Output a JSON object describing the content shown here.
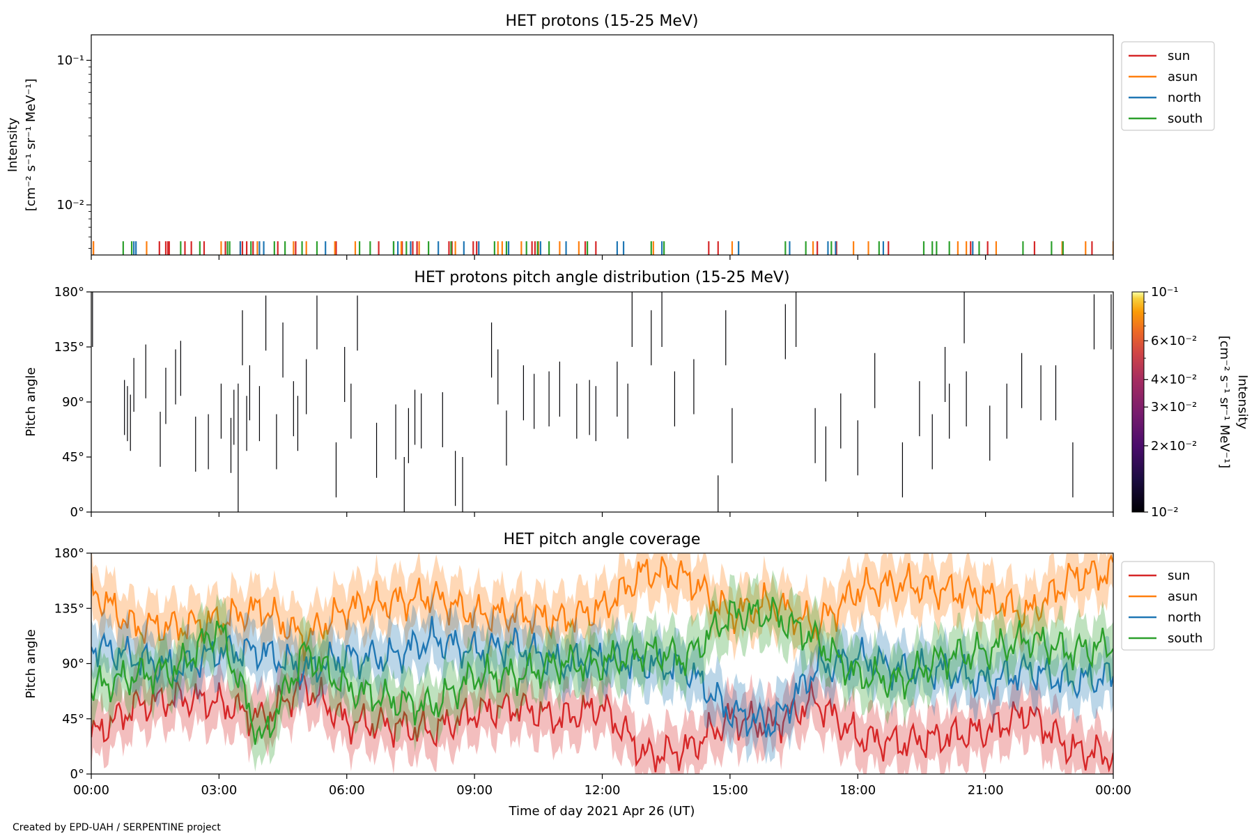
{
  "credit": "Created by EPD-UAH / SERPENTINE project",
  "colors": {
    "sun": "#d62728",
    "asun": "#ff7f0e",
    "north": "#1f77b4",
    "south": "#2ca02c"
  },
  "x_axis": {
    "label": "Time of day 2021 Apr 26 (UT)",
    "ticks": [
      "00:00",
      "03:00",
      "06:00",
      "09:00",
      "12:00",
      "15:00",
      "18:00",
      "21:00",
      "00:00"
    ],
    "range_hours": [
      0,
      24
    ]
  },
  "legend": {
    "placement": "outside-right-top",
    "entries": [
      "sun",
      "asun",
      "north",
      "south"
    ]
  },
  "chart_data": [
    {
      "type": "line",
      "title": "HET protons (15-25 MeV)",
      "ylabel_line1": "Intensity",
      "ylabel_line2": "[cm⁻² s⁻¹ sr⁻¹ MeV⁻¹]",
      "yscale": "log",
      "ylim": [
        0.0045,
        0.15
      ],
      "yticks": [
        {
          "label": "10⁻²",
          "value": 0.01
        },
        {
          "label": "10⁻¹",
          "value": 0.1
        }
      ],
      "spike_level": 0.0056,
      "series": [
        {
          "name": "sun",
          "x": [
            0.05,
            1.6,
            1.75,
            1.8,
            1.83,
            2.2,
            2.35,
            2.65,
            3.15,
            3.55,
            3.65,
            3.8,
            4.38,
            4.8,
            5.75,
            6.75,
            7.3,
            7.55,
            7.65,
            8.4,
            8.47,
            8.97,
            9.05,
            10.35,
            10.42,
            11.6,
            11.85,
            14.5,
            14.72,
            17.05,
            17.5,
            18.72,
            20.65,
            21.05,
            22.15,
            23.5
          ]
        },
        {
          "name": "asun",
          "x": [
            0.05,
            1.3,
            3.05,
            3.5,
            3.9,
            4.75,
            5.05,
            5.72,
            6.2,
            7.28,
            7.7,
            8.55,
            9.55,
            9.65,
            10.1,
            10.5,
            11.0,
            11.45,
            13.2,
            15.05,
            15.2,
            16.95,
            17.9,
            18.25,
            20.35,
            20.55,
            21.25,
            22.8,
            23.35,
            24.0
          ]
        },
        {
          "name": "north",
          "x": [
            1.0,
            1.05,
            3.5,
            3.95,
            4.05,
            5.5,
            7.1,
            7.2,
            7.5,
            8.15,
            8.75,
            9.1,
            9.8,
            10.55,
            11.15,
            12.35,
            12.5,
            13.4,
            15.2,
            16.4,
            17.3,
            17.48,
            18.6,
            20.7
          ]
        },
        {
          "name": "south",
          "x": [
            0.75,
            0.95,
            2.1,
            2.55,
            3.2,
            3.25,
            3.75,
            4.3,
            4.55,
            4.95,
            5.3,
            6.3,
            6.55,
            7.1,
            7.4,
            7.92,
            8.45,
            9.47,
            9.75,
            10.22,
            10.48,
            10.75,
            11.65,
            13.15,
            13.45,
            16.3,
            16.78,
            17.38,
            18.5,
            19.55,
            19.75,
            19.85,
            20.15,
            20.85,
            21.88,
            22.55,
            22.82
          ]
        }
      ]
    },
    {
      "type": "heatmap",
      "title": "HET protons pitch angle distribution (15-25 MeV)",
      "ylabel": "Pitch angle",
      "ylim": [
        0,
        180
      ],
      "yticks": [
        {
          "label": "0°",
          "value": 0
        },
        {
          "label": "45°",
          "value": 45
        },
        {
          "label": "90°",
          "value": 90
        },
        {
          "label": "135°",
          "value": 135
        },
        {
          "label": "180°",
          "value": 180
        }
      ],
      "colorbar": {
        "label_line1": "Intensity",
        "label_line2": "[cm⁻² s⁻¹ sr⁻¹ MeV⁻¹]",
        "scale": "log",
        "range": [
          0.01,
          0.1
        ],
        "colormap": "inferno",
        "ticks": [
          {
            "label": "10⁻²",
            "value": 0.01
          },
          {
            "label": "2×10⁻²",
            "value": 0.02
          },
          {
            "label": "3×10⁻²",
            "value": 0.03
          },
          {
            "label": "4×10⁻²",
            "value": 0.04
          },
          {
            "label": "6×10⁻²",
            "value": 0.06
          },
          {
            "label": "10⁻¹",
            "value": 0.1
          }
        ]
      },
      "cells": [
        {
          "t": 0.03,
          "lo": 135,
          "hi": 180
        },
        {
          "t": 0.78,
          "lo": 63,
          "hi": 108
        },
        {
          "t": 0.85,
          "lo": 58,
          "hi": 103
        },
        {
          "t": 0.92,
          "lo": 50,
          "hi": 96
        },
        {
          "t": 1.0,
          "lo": 82,
          "hi": 126
        },
        {
          "t": 1.28,
          "lo": 93,
          "hi": 137
        },
        {
          "t": 1.62,
          "lo": 37,
          "hi": 82
        },
        {
          "t": 1.75,
          "lo": 72,
          "hi": 118
        },
        {
          "t": 1.98,
          "lo": 88,
          "hi": 133
        },
        {
          "t": 2.1,
          "lo": 95,
          "hi": 140
        },
        {
          "t": 2.45,
          "lo": 33,
          "hi": 78
        },
        {
          "t": 2.75,
          "lo": 35,
          "hi": 80
        },
        {
          "t": 3.05,
          "lo": 60,
          "hi": 105
        },
        {
          "t": 3.28,
          "lo": 32,
          "hi": 77
        },
        {
          "t": 3.35,
          "lo": 55,
          "hi": 100
        },
        {
          "t": 3.45,
          "lo": 0,
          "hi": 105
        },
        {
          "t": 3.55,
          "lo": 120,
          "hi": 165
        },
        {
          "t": 3.65,
          "lo": 50,
          "hi": 95
        },
        {
          "t": 3.72,
          "lo": 75,
          "hi": 120
        },
        {
          "t": 3.95,
          "lo": 58,
          "hi": 103
        },
        {
          "t": 4.1,
          "lo": 132,
          "hi": 177
        },
        {
          "t": 4.35,
          "lo": 35,
          "hi": 80
        },
        {
          "t": 4.5,
          "lo": 110,
          "hi": 155
        },
        {
          "t": 4.75,
          "lo": 62,
          "hi": 107
        },
        {
          "t": 4.85,
          "lo": 50,
          "hi": 95
        },
        {
          "t": 5.05,
          "lo": 80,
          "hi": 125
        },
        {
          "t": 5.3,
          "lo": 133,
          "hi": 177
        },
        {
          "t": 5.75,
          "lo": 12,
          "hi": 57
        },
        {
          "t": 5.95,
          "lo": 90,
          "hi": 135
        },
        {
          "t": 6.1,
          "lo": 60,
          "hi": 105
        },
        {
          "t": 6.25,
          "lo": 132,
          "hi": 177
        },
        {
          "t": 6.7,
          "lo": 28,
          "hi": 73
        },
        {
          "t": 7.15,
          "lo": 43,
          "hi": 88
        },
        {
          "t": 7.35,
          "lo": 0,
          "hi": 45
        },
        {
          "t": 7.45,
          "lo": 40,
          "hi": 85
        },
        {
          "t": 7.6,
          "lo": 55,
          "hi": 100
        },
        {
          "t": 7.75,
          "lo": 52,
          "hi": 97
        },
        {
          "t": 8.25,
          "lo": 53,
          "hi": 98
        },
        {
          "t": 8.55,
          "lo": 5,
          "hi": 50
        },
        {
          "t": 8.72,
          "lo": 0,
          "hi": 45
        },
        {
          "t": 9.4,
          "lo": 110,
          "hi": 155
        },
        {
          "t": 9.55,
          "lo": 88,
          "hi": 133
        },
        {
          "t": 9.75,
          "lo": 38,
          "hi": 83
        },
        {
          "t": 10.15,
          "lo": 75,
          "hi": 120
        },
        {
          "t": 10.4,
          "lo": 68,
          "hi": 113
        },
        {
          "t": 10.75,
          "lo": 70,
          "hi": 115
        },
        {
          "t": 11.0,
          "lo": 78,
          "hi": 123
        },
        {
          "t": 11.4,
          "lo": 60,
          "hi": 105
        },
        {
          "t": 11.7,
          "lo": 63,
          "hi": 108
        },
        {
          "t": 11.85,
          "lo": 58,
          "hi": 103
        },
        {
          "t": 12.35,
          "lo": 78,
          "hi": 123
        },
        {
          "t": 12.6,
          "lo": 60,
          "hi": 105
        },
        {
          "t": 12.7,
          "lo": 135,
          "hi": 180
        },
        {
          "t": 13.15,
          "lo": 120,
          "hi": 165
        },
        {
          "t": 13.4,
          "lo": 135,
          "hi": 180
        },
        {
          "t": 13.7,
          "lo": 70,
          "hi": 115
        },
        {
          "t": 14.15,
          "lo": 80,
          "hi": 125
        },
        {
          "t": 14.72,
          "lo": 0,
          "hi": 30
        },
        {
          "t": 14.9,
          "lo": 120,
          "hi": 165
        },
        {
          "t": 15.05,
          "lo": 40,
          "hi": 85
        },
        {
          "t": 16.3,
          "lo": 125,
          "hi": 170
        },
        {
          "t": 16.55,
          "lo": 135,
          "hi": 180
        },
        {
          "t": 17.0,
          "lo": 40,
          "hi": 85
        },
        {
          "t": 17.25,
          "lo": 25,
          "hi": 70
        },
        {
          "t": 17.6,
          "lo": 52,
          "hi": 97
        },
        {
          "t": 18.0,
          "lo": 30,
          "hi": 75
        },
        {
          "t": 18.4,
          "lo": 85,
          "hi": 130
        },
        {
          "t": 19.05,
          "lo": 12,
          "hi": 57
        },
        {
          "t": 19.45,
          "lo": 62,
          "hi": 107
        },
        {
          "t": 19.75,
          "lo": 35,
          "hi": 80
        },
        {
          "t": 20.05,
          "lo": 90,
          "hi": 135
        },
        {
          "t": 20.15,
          "lo": 60,
          "hi": 105
        },
        {
          "t": 20.5,
          "lo": 138,
          "hi": 180
        },
        {
          "t": 20.55,
          "lo": 70,
          "hi": 115
        },
        {
          "t": 21.1,
          "lo": 42,
          "hi": 87
        },
        {
          "t": 21.5,
          "lo": 60,
          "hi": 105
        },
        {
          "t": 21.85,
          "lo": 85,
          "hi": 130
        },
        {
          "t": 22.3,
          "lo": 75,
          "hi": 120
        },
        {
          "t": 22.65,
          "lo": 75,
          "hi": 120
        },
        {
          "t": 23.05,
          "lo": 12,
          "hi": 57
        },
        {
          "t": 23.55,
          "lo": 133,
          "hi": 178
        },
        {
          "t": 23.95,
          "lo": 133,
          "hi": 178
        }
      ]
    },
    {
      "type": "line",
      "title": "HET pitch angle coverage",
      "ylabel": "Pitch angle",
      "ylim": [
        0,
        180
      ],
      "yticks": [
        {
          "label": "0°",
          "value": 0
        },
        {
          "label": "45°",
          "value": 45
        },
        {
          "label": "90°",
          "value": 90
        },
        {
          "label": "135°",
          "value": 135
        },
        {
          "label": "180°",
          "value": 180
        }
      ],
      "band_halfwidth_deg": 22,
      "x_hours": [
        0,
        1,
        2,
        3,
        4,
        5,
        6,
        7,
        8,
        9,
        10,
        11,
        12,
        13,
        14,
        15,
        16,
        17,
        18,
        19,
        20,
        21,
        22,
        23,
        24
      ],
      "series": [
        {
          "name": "sun",
          "values": [
            30,
            55,
            62,
            58,
            45,
            72,
            42,
            40,
            35,
            50,
            55,
            45,
            55,
            15,
            20,
            45,
            40,
            60,
            30,
            25,
            30,
            35,
            50,
            20,
            15
          ]
        },
        {
          "name": "asun",
          "values": [
            150,
            120,
            120,
            125,
            135,
            110,
            135,
            140,
            145,
            130,
            130,
            125,
            135,
            165,
            160,
            130,
            140,
            120,
            150,
            155,
            150,
            145,
            130,
            160,
            165
          ]
        },
        {
          "name": "north",
          "values": [
            105,
            95,
            85,
            100,
            100,
            85,
            95,
            95,
            110,
            100,
            105,
            90,
            95,
            90,
            85,
            50,
            40,
            85,
            95,
            85,
            85,
            75,
            85,
            75,
            80
          ]
        },
        {
          "name": "south",
          "values": [
            70,
            80,
            85,
            120,
            25,
            100,
            70,
            60,
            55,
            80,
            80,
            90,
            90,
            100,
            95,
            130,
            130,
            110,
            80,
            75,
            95,
            100,
            110,
            100,
            105
          ]
        }
      ]
    }
  ]
}
